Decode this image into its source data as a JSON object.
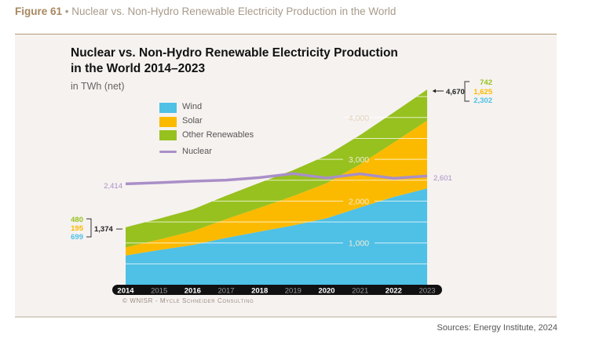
{
  "figure_label": "Figure 61",
  "figure_title": "Nuclear vs. Non-Hydro Renewable Electricity Production in the World",
  "source": "Sources: Energy Institute, 2024",
  "copyright": "© WNISR - Mycle Schneider Consulting",
  "chart_data": {
    "type": "area",
    "title_line1": "Nuclear vs. Non-Hydro Renewable Electricity Production",
    "title_line2": "in the World 2014–2023",
    "unit": "in TWh (net)",
    "x": [
      "2014",
      "2015",
      "2016",
      "2017",
      "2018",
      "2019",
      "2020",
      "2021",
      "2022",
      "2023"
    ],
    "ylim": [
      0,
      4700
    ],
    "yticks": [
      "1,000",
      "2,000",
      "3,000",
      "4,000"
    ],
    "grid": true,
    "legend_position": "top-left",
    "series": [
      {
        "name": "Wind",
        "kind": "stacked-area",
        "color": "#4fc0e6",
        "values": [
          699,
          830,
          950,
          1120,
          1270,
          1420,
          1590,
          1850,
          2100,
          2302
        ]
      },
      {
        "name": "Solar",
        "kind": "stacked-area",
        "color": "#fbba00",
        "values": [
          195,
          250,
          330,
          450,
          570,
          700,
          840,
          1030,
          1300,
          1625
        ]
      },
      {
        "name": "Other Renewables",
        "kind": "stacked-area",
        "color": "#97c11f",
        "values": [
          480,
          500,
          520,
          560,
          600,
          620,
          660,
          700,
          720,
          742
        ]
      },
      {
        "name": "Nuclear",
        "kind": "line",
        "color": "#a98fc8",
        "values": [
          2414,
          2441,
          2476,
          2503,
          2563,
          2657,
          2553,
          2653,
          2545,
          2601
        ]
      }
    ],
    "annotations": {
      "start_total": "1,374",
      "start_other": "480",
      "start_solar": "195",
      "start_wind": "699",
      "end_total": "4,670",
      "end_other": "742",
      "end_solar": "1,625",
      "end_wind": "2,302",
      "nuclear_start": "2,414",
      "nuclear_end": "2,601"
    }
  }
}
